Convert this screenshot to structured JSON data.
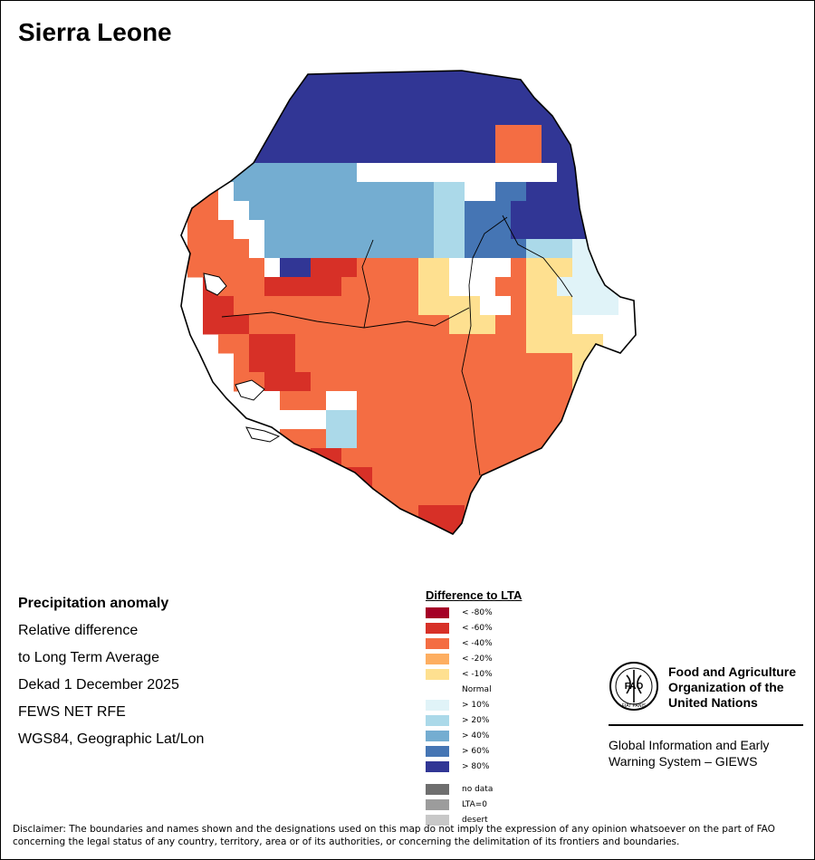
{
  "title": "Sierra Leone",
  "info": {
    "heading": "Precipitation anomaly",
    "line1": "Relative difference",
    "line2": "to Long Term Average",
    "line3": "Dekad 1 December 2025",
    "line4": "FEWS NET RFE",
    "line5": "WGS84, Geographic Lat/Lon"
  },
  "legend": {
    "title": "Difference to LTA",
    "classes": [
      {
        "label": "< -80%",
        "color": "#a50026"
      },
      {
        "label": "< -60%",
        "color": "#d73027"
      },
      {
        "label": "< -40%",
        "color": "#f46d43"
      },
      {
        "label": "< -20%",
        "color": "#fdae61"
      },
      {
        "label": "< -10%",
        "color": "#fee090"
      },
      {
        "label": "Normal",
        "color": "#ffffff"
      },
      {
        "label": "> 10%",
        "color": "#e0f3f8"
      },
      {
        "label": "> 20%",
        "color": "#abd9e9"
      },
      {
        "label": "> 40%",
        "color": "#74add1"
      },
      {
        "label": "> 60%",
        "color": "#4575b4"
      },
      {
        "label": "> 80%",
        "color": "#313695"
      }
    ],
    "extra": [
      {
        "label": "no data",
        "color": "#6e6e6e"
      },
      {
        "label": "LTA=0",
        "color": "#9c9c9c"
      },
      {
        "label": "desert",
        "color": "#c8c8c8"
      }
    ]
  },
  "fao": {
    "name_line1": "Food and Agriculture",
    "name_line2": "Organization of the",
    "name_line3": "United Nations",
    "giews_line1": "Global Information and Early",
    "giews_line2": "Warning System – GIEWS",
    "logo_text": "FAO",
    "logo_motto": "FIAT PANIS"
  },
  "map": {
    "country": "Sierra Leone",
    "grid": [
      "........BBBBBBBBBBBBBBBWB.......",
      "......BBBBBBBBBBBBBBBBBBWW......",
      ".....BBBBBBBBBBBBBBBBBBBBBB.....",
      "....BBBBBBBBBBBBBBBBBOOOBBB.....",
      "....BBBBBBBBBBBBBBBBBOOOBBBB....",
      "...MMMMMMMMMWWWWWWWWWWWWWBBBBB..",
      "..OWMMMMMMMMMMMMMLLWWDDBBBBBBB..",
      ".OOWWMMMMMMMMMMMMLLDDDBBBBBBBBB.",
      ".OOOWWMMMMMMMMMMMLLDDDBBBBBLLDB.",
      ".OOOOWMMMMMMMMMMMLLDDDDLLLXXXLDB",
      ".OOOOOWBBRRROOOOYYWWWWOYYYXXXLDB",
      "..ROOORRRRROOOOOYYWWWOOYYXXXXXWB",
      "..RROOOOOOOOOOOOYYYYWWOYYYXXXWWW",
      "..RRROOOOOOOOOOOOOYYYOOYYYWWWWWW",
      "...OORRROOOOOOOOOOOOOOOYYYYYWW..",
      "....ORRROOOOOOOOOOOOOOOOOOYY....",
      "....OORRROOOOOOOOOOOOOOOOOYY....",
      ".....WWOOOWWOOOOOOOOOOOOOOYY....",
      "......WWWWLLOOOOOOOOOOOOOOY.....",
      "......WOOOLLOOOOOOOOOOOOOY......",
      ".......OORROOOOOOOOOOOOOO.......",
      "........OORRROOOOOOOOOOO........",
      "..........RRROOOOOOOOO..........",
      "............RROORRRO............",
      "...............RRRR............."
    ],
    "palette": {
      "R": "#d73027",
      "O": "#f46d43",
      "A": "#fdae61",
      "Y": "#fee090",
      "W": "#ffffff",
      "X": "#e0f3f8",
      "L": "#abd9e9",
      "M": "#74add1",
      "D": "#4575b4",
      "B": "#313695"
    }
  },
  "disclaimer": "Disclaimer: The boundaries and names shown and the designations used on this map do not imply the expression of any opinion whatsoever on the part of FAO concerning the legal status of any country, territory, area or of its authorities, or concerning the delimitation of its frontiers and boundaries."
}
